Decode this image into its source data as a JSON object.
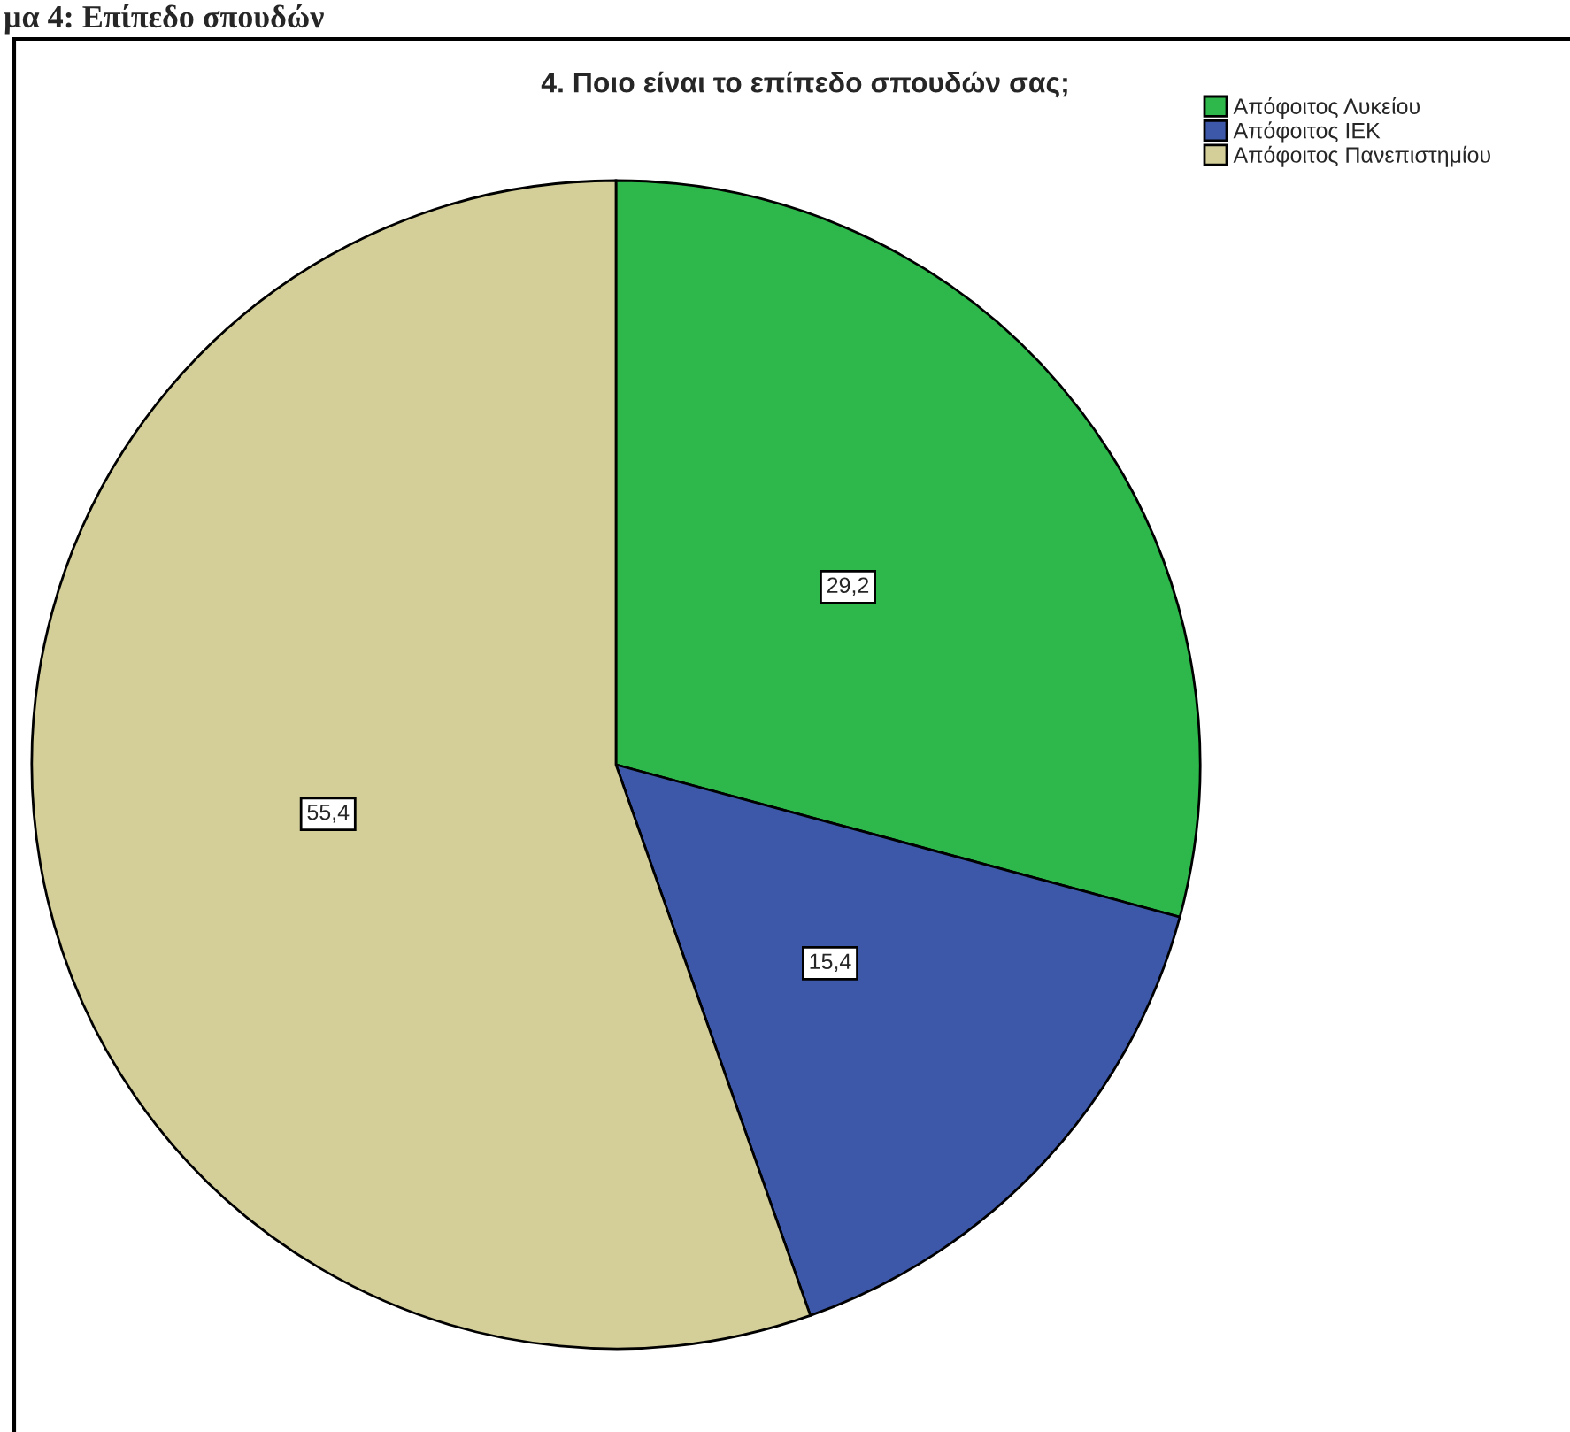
{
  "chart_data": {
    "type": "pie",
    "title": "4. Ποιο είναι το επίπεδο σπουδών σας;",
    "annotations": [
      "μα 4: Επίπεδο σπουδών"
    ],
    "categories": [
      "Απόφοιτος Λυκείου",
      "Απόφοιτος ΙΕΚ",
      "Απόφοιτος Πανεπιστημίου"
    ],
    "values": [
      29.2,
      15.4,
      55.4
    ],
    "colors": [
      "#2eb84b",
      "#3d57a9",
      "#d4cf99"
    ],
    "value_labels": [
      "29,2",
      "15,4",
      "55,4"
    ],
    "legend": "top right"
  }
}
